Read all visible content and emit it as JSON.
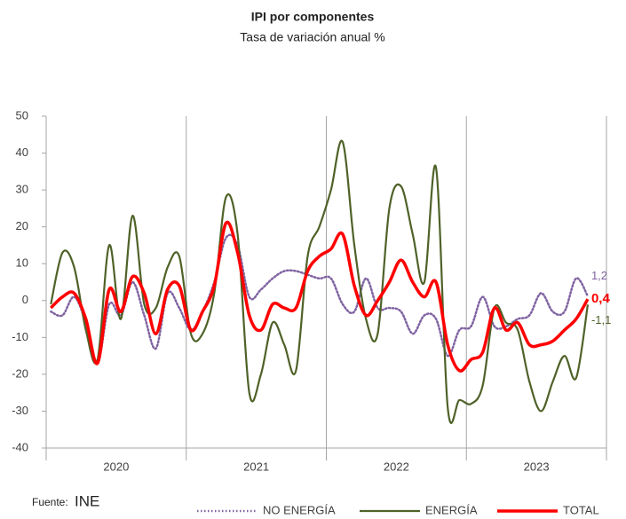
{
  "chart_data": {
    "type": "line",
    "title": "IPI por componentes",
    "subtitle": "Tasa de variación anual %",
    "source_label": "Fuente:",
    "source": "INE",
    "year_groups": [
      "2020",
      "2021",
      "2022",
      "2023"
    ],
    "categories": [
      null,
      null,
      null,
      null,
      null,
      null,
      null,
      null,
      null,
      null,
      null,
      null,
      null,
      null,
      null,
      null,
      null,
      null,
      null,
      null,
      null,
      null,
      null,
      null,
      null,
      null,
      null,
      null,
      null,
      null,
      null,
      null,
      null,
      null,
      null,
      null,
      null,
      null,
      null,
      null,
      null,
      null,
      null,
      null,
      null,
      null,
      null
    ],
    "ylim": [
      -40,
      50
    ],
    "yticks": [
      -40,
      -30,
      -20,
      -10,
      0,
      10,
      20,
      30,
      40,
      50
    ],
    "series": [
      {
        "name": "NO ENERGÍA",
        "color": "#8064a2",
        "dash": "dotted",
        "values": [
          -3,
          -4,
          1,
          -6,
          -17,
          -1,
          -4,
          5,
          -4,
          -13,
          2,
          -2,
          -8,
          -3,
          5,
          17,
          15,
          1,
          3,
          6,
          8,
          8,
          7,
          6,
          6,
          -1,
          -3,
          6,
          -2,
          -2,
          -3,
          -9,
          -4,
          -5,
          -15,
          -8,
          -7,
          1,
          -7,
          -7,
          -5,
          -4,
          2,
          -3,
          -3,
          6,
          1.2
        ],
        "value_labels": [
          null,
          null,
          null,
          null,
          null,
          null,
          null,
          null,
          null,
          null,
          null,
          null,
          null,
          null,
          null,
          null,
          null,
          null,
          null,
          null,
          null,
          null,
          null,
          null,
          null,
          null,
          null,
          null,
          null,
          null,
          null,
          null,
          null,
          null,
          null,
          null,
          null,
          null,
          null,
          null,
          null,
          null,
          null,
          null,
          null,
          null,
          "1,2"
        ]
      },
      {
        "name": "ENERGÍA",
        "color": "#4f6228",
        "dash": "solid",
        "values": [
          -1,
          13,
          9,
          -8,
          -16,
          15,
          -5,
          23,
          -1,
          -2,
          9,
          12,
          -9,
          -9,
          2,
          28,
          18,
          -25,
          -20,
          -6,
          -12,
          -19,
          12,
          20,
          30,
          43,
          15,
          -5,
          -9,
          25,
          31,
          18,
          5,
          36,
          -29,
          -27,
          -28,
          -23,
          -2,
          -6,
          -8,
          -22,
          -30,
          -22,
          -15,
          -21,
          -1.1
        ],
        "value_labels": [
          null,
          null,
          null,
          null,
          null,
          null,
          null,
          null,
          null,
          null,
          null,
          null,
          null,
          null,
          null,
          null,
          null,
          null,
          null,
          null,
          null,
          null,
          null,
          null,
          null,
          null,
          null,
          null,
          null,
          null,
          null,
          null,
          null,
          null,
          null,
          null,
          null,
          null,
          null,
          null,
          null,
          null,
          null,
          null,
          null,
          null,
          "-1,1"
        ]
      },
      {
        "name": "TOTAL",
        "color": "#ff0000",
        "dash": "thick",
        "values": [
          -2,
          1,
          2,
          -5,
          -17,
          3,
          -3,
          6.5,
          2,
          -9,
          3,
          4,
          -8,
          -3,
          4,
          21,
          13,
          -4,
          -8,
          -1,
          -2,
          -2,
          8,
          12,
          14,
          18,
          4,
          -4,
          0,
          5,
          11,
          5,
          1,
          5,
          -12,
          -19,
          -16,
          -14,
          -2,
          -8,
          -6,
          -12,
          -12,
          -11,
          -8,
          -5,
          0.4
        ],
        "value_labels": [
          null,
          null,
          null,
          null,
          null,
          null,
          null,
          null,
          null,
          null,
          null,
          null,
          null,
          null,
          null,
          null,
          null,
          null,
          null,
          null,
          null,
          null,
          null,
          null,
          null,
          null,
          null,
          null,
          null,
          null,
          null,
          null,
          null,
          null,
          null,
          null,
          null,
          null,
          null,
          null,
          null,
          null,
          null,
          null,
          null,
          null,
          "0,4"
        ]
      }
    ]
  }
}
